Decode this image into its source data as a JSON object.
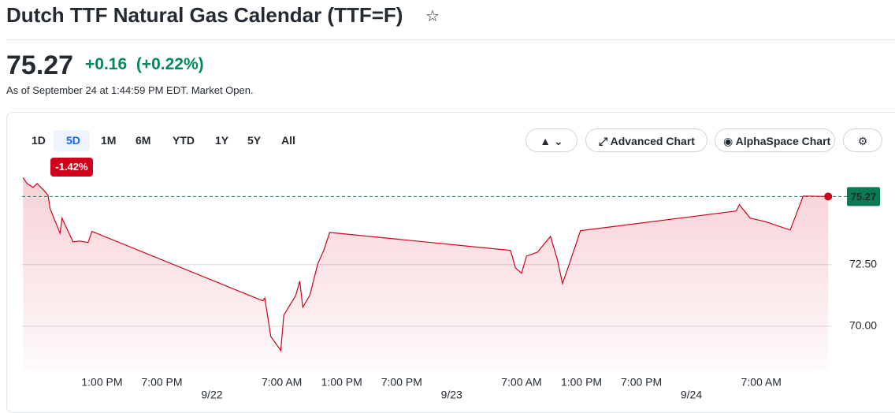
{
  "header": {
    "title": "Dutch TTF Natural Gas Calendar (TTF=F)"
  },
  "quote": {
    "price": "75.27",
    "change": "+0.16",
    "change_percent": "(+0.22%)",
    "as_of": "As of September 24 at 1:44:59 PM EDT. Market Open."
  },
  "toolbar": {
    "ranges": [
      "1D",
      "5D",
      "1M",
      "6M",
      "YTD",
      "1Y",
      "5Y",
      "All"
    ],
    "selected_range_change": "-1.42%",
    "buttons": [
      "Advanced Chart",
      "AlphaSpace Chart"
    ]
  },
  "chart_data": {
    "type": "line",
    "color": "#d0021b",
    "current": 75.27,
    "x": [
      -18.9,
      -18.5,
      -17.9,
      -17.5,
      -16.8,
      -16.4,
      -16.2,
      -15.2,
      -15.0,
      -13.9,
      -13.2,
      -12.4,
      -12.0,
      5.1,
      5.3,
      5.9,
      6.9,
      7.2,
      8.4,
      8.8,
      9.1,
      9.8,
      10.6,
      11.2,
      11.8,
      29.9,
      30.4,
      31.0,
      31.5,
      32.6,
      33.9,
      34.6,
      35.1,
      35.6,
      36.9,
      52.5,
      52.8,
      53.9,
      55.3,
      57.9,
      59.2,
      61.7
    ],
    "values": [
      76.03,
      75.8,
      75.64,
      75.8,
      75.51,
      75.32,
      74.78,
      73.78,
      74.39,
      73.43,
      73.46,
      73.4,
      73.85,
      71.03,
      71.15,
      69.58,
      69.01,
      70.45,
      71.25,
      71.83,
      70.77,
      71.25,
      72.53,
      73.08,
      73.81,
      73.08,
      72.37,
      72.15,
      72.85,
      73.01,
      73.65,
      72.69,
      71.73,
      72.31,
      73.88,
      74.68,
      74.94,
      74.39,
      74.26,
      73.91,
      75.29,
      75.27
    ],
    "xlim": [
      -19,
      62
    ],
    "ylim": [
      68.2,
      76.85
    ],
    "yticks": [
      {
        "value": 70,
        "label": "70.00"
      },
      {
        "value": 72.5,
        "label": "72.50"
      }
    ],
    "xticks": [
      {
        "value": -11,
        "label": "1:00 PM"
      },
      {
        "value": -5,
        "label": "7:00 PM"
      },
      {
        "value": 7,
        "label": "7:00 AM"
      },
      {
        "value": 13,
        "label": "1:00 PM"
      },
      {
        "value": 19,
        "label": "7:00 PM"
      },
      {
        "value": 31,
        "label": "7:00 AM"
      },
      {
        "value": 37,
        "label": "1:00 PM"
      },
      {
        "value": 43,
        "label": "7:00 PM"
      },
      {
        "value": 55,
        "label": "7:00 AM"
      }
    ],
    "date_ticks": [
      {
        "value": 0,
        "label": "9/22"
      },
      {
        "value": 24,
        "label": "9/23"
      },
      {
        "value": 48,
        "label": "9/24"
      }
    ],
    "grid": true
  }
}
